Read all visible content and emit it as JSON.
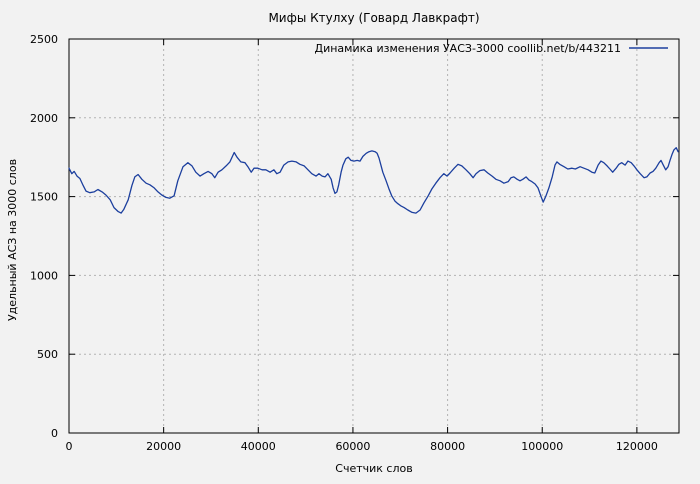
{
  "app": {
    "background_color": "#f2f2f2",
    "text_color": "#000000",
    "grid_color": "#b3b3b3",
    "border_color": "#000000"
  },
  "chart_data": {
    "type": "line",
    "title": "Мифы Ктулху (Говард Лавкрафт)",
    "xlabel": "Счетчик слов",
    "ylabel": "Удельный АСЗ на 3000 слов",
    "grid": true,
    "legend_position": "top-right-inside",
    "legend": [
      {
        "label": "Динамика изменения УАСЗ-3000  coollib.net/b/443211",
        "color": "#1c3f9e"
      }
    ],
    "xlim": [
      0,
      128900
    ],
    "ylim": [
      0,
      2500
    ],
    "xticks": [
      0,
      20000,
      40000,
      60000,
      80000,
      100000,
      120000
    ],
    "xtick_labels": [
      "0",
      "20000",
      "40000",
      "60000",
      "80000",
      "100000",
      "120000"
    ],
    "yticks": [
      0,
      500,
      1000,
      1500,
      2000,
      2500
    ],
    "ytick_labels": [
      "0",
      "500",
      "1000",
      "1500",
      "2000",
      "2500"
    ],
    "series": [
      {
        "name": "Динамика изменения УАСЗ-3000  coollib.net/b/443211",
        "color": "#1c3f9e",
        "points": [
          [
            0,
            1680
          ],
          [
            600,
            1645
          ],
          [
            1100,
            1660
          ],
          [
            1700,
            1630
          ],
          [
            2300,
            1615
          ],
          [
            3000,
            1570
          ],
          [
            3600,
            1535
          ],
          [
            4400,
            1525
          ],
          [
            5300,
            1530
          ],
          [
            6100,
            1545
          ],
          [
            7000,
            1530
          ],
          [
            7800,
            1510
          ],
          [
            8700,
            1480
          ],
          [
            9500,
            1430
          ],
          [
            10400,
            1405
          ],
          [
            11000,
            1395
          ],
          [
            11600,
            1420
          ],
          [
            12500,
            1480
          ],
          [
            13300,
            1570
          ],
          [
            13900,
            1625
          ],
          [
            14600,
            1640
          ],
          [
            15400,
            1610
          ],
          [
            16300,
            1585
          ],
          [
            17100,
            1575
          ],
          [
            18000,
            1555
          ],
          [
            18800,
            1530
          ],
          [
            19600,
            1510
          ],
          [
            20500,
            1495
          ],
          [
            21300,
            1490
          ],
          [
            22200,
            1505
          ],
          [
            23000,
            1600
          ],
          [
            24100,
            1690
          ],
          [
            25100,
            1715
          ],
          [
            26000,
            1695
          ],
          [
            26800,
            1655
          ],
          [
            27700,
            1630
          ],
          [
            28500,
            1645
          ],
          [
            29400,
            1660
          ],
          [
            30200,
            1645
          ],
          [
            30800,
            1620
          ],
          [
            31500,
            1655
          ],
          [
            32300,
            1670
          ],
          [
            33200,
            1695
          ],
          [
            34000,
            1720
          ],
          [
            34900,
            1780
          ],
          [
            35500,
            1750
          ],
          [
            36300,
            1720
          ],
          [
            37200,
            1715
          ],
          [
            37800,
            1690
          ],
          [
            38500,
            1655
          ],
          [
            39100,
            1680
          ],
          [
            39900,
            1680
          ],
          [
            40800,
            1670
          ],
          [
            41600,
            1670
          ],
          [
            42500,
            1655
          ],
          [
            43300,
            1670
          ],
          [
            43900,
            1645
          ],
          [
            44600,
            1655
          ],
          [
            45400,
            1700
          ],
          [
            46300,
            1720
          ],
          [
            47100,
            1725
          ],
          [
            48000,
            1720
          ],
          [
            48800,
            1705
          ],
          [
            49700,
            1695
          ],
          [
            50500,
            1670
          ],
          [
            51300,
            1645
          ],
          [
            52200,
            1630
          ],
          [
            52800,
            1645
          ],
          [
            53500,
            1630
          ],
          [
            54100,
            1625
          ],
          [
            54700,
            1645
          ],
          [
            55400,
            1610
          ],
          [
            55800,
            1555
          ],
          [
            56200,
            1520
          ],
          [
            56600,
            1530
          ],
          [
            57000,
            1575
          ],
          [
            57500,
            1655
          ],
          [
            57900,
            1700
          ],
          [
            58500,
            1740
          ],
          [
            59000,
            1750
          ],
          [
            59600,
            1730
          ],
          [
            60200,
            1725
          ],
          [
            60900,
            1730
          ],
          [
            61500,
            1725
          ],
          [
            62100,
            1755
          ],
          [
            62800,
            1775
          ],
          [
            63400,
            1785
          ],
          [
            64000,
            1790
          ],
          [
            64700,
            1785
          ],
          [
            65100,
            1775
          ],
          [
            65500,
            1745
          ],
          [
            65900,
            1700
          ],
          [
            66300,
            1655
          ],
          [
            67000,
            1600
          ],
          [
            67600,
            1550
          ],
          [
            68200,
            1505
          ],
          [
            68900,
            1470
          ],
          [
            69500,
            1455
          ],
          [
            70200,
            1440
          ],
          [
            70800,
            1430
          ],
          [
            71600,
            1415
          ],
          [
            72500,
            1400
          ],
          [
            73300,
            1395
          ],
          [
            74200,
            1415
          ],
          [
            75000,
            1460
          ],
          [
            75900,
            1505
          ],
          [
            76700,
            1550
          ],
          [
            77500,
            1585
          ],
          [
            78400,
            1620
          ],
          [
            79200,
            1645
          ],
          [
            79900,
            1630
          ],
          [
            80500,
            1650
          ],
          [
            81400,
            1680
          ],
          [
            82200,
            1705
          ],
          [
            83000,
            1695
          ],
          [
            83900,
            1670
          ],
          [
            84700,
            1645
          ],
          [
            85400,
            1620
          ],
          [
            86000,
            1645
          ],
          [
            86800,
            1665
          ],
          [
            87700,
            1670
          ],
          [
            88500,
            1650
          ],
          [
            89400,
            1630
          ],
          [
            90200,
            1610
          ],
          [
            91100,
            1600
          ],
          [
            91900,
            1585
          ],
          [
            92800,
            1595
          ],
          [
            93400,
            1620
          ],
          [
            94000,
            1625
          ],
          [
            94700,
            1610
          ],
          [
            95300,
            1600
          ],
          [
            95900,
            1610
          ],
          [
            96600,
            1625
          ],
          [
            97200,
            1605
          ],
          [
            97800,
            1595
          ],
          [
            98500,
            1580
          ],
          [
            99100,
            1555
          ],
          [
            99700,
            1505
          ],
          [
            100200,
            1465
          ],
          [
            100800,
            1505
          ],
          [
            101400,
            1555
          ],
          [
            102100,
            1625
          ],
          [
            102700,
            1700
          ],
          [
            103100,
            1720
          ],
          [
            103700,
            1705
          ],
          [
            104600,
            1690
          ],
          [
            105400,
            1675
          ],
          [
            106300,
            1680
          ],
          [
            107000,
            1675
          ],
          [
            108000,
            1690
          ],
          [
            108800,
            1680
          ],
          [
            109700,
            1670
          ],
          [
            110500,
            1655
          ],
          [
            111100,
            1650
          ],
          [
            111800,
            1700
          ],
          [
            112400,
            1725
          ],
          [
            113000,
            1715
          ],
          [
            113700,
            1695
          ],
          [
            114300,
            1675
          ],
          [
            114900,
            1655
          ],
          [
            115600,
            1680
          ],
          [
            116200,
            1705
          ],
          [
            116800,
            1715
          ],
          [
            117500,
            1700
          ],
          [
            118100,
            1725
          ],
          [
            118800,
            1715
          ],
          [
            119400,
            1695
          ],
          [
            120000,
            1670
          ],
          [
            120700,
            1645
          ],
          [
            121500,
            1620
          ],
          [
            122100,
            1625
          ],
          [
            122800,
            1650
          ],
          [
            123400,
            1660
          ],
          [
            124000,
            1680
          ],
          [
            124700,
            1715
          ],
          [
            125100,
            1730
          ],
          [
            125500,
            1705
          ],
          [
            126100,
            1670
          ],
          [
            126600,
            1690
          ],
          [
            127000,
            1730
          ],
          [
            127400,
            1765
          ],
          [
            127800,
            1795
          ],
          [
            128300,
            1810
          ],
          [
            128700,
            1785
          ]
        ]
      }
    ]
  }
}
